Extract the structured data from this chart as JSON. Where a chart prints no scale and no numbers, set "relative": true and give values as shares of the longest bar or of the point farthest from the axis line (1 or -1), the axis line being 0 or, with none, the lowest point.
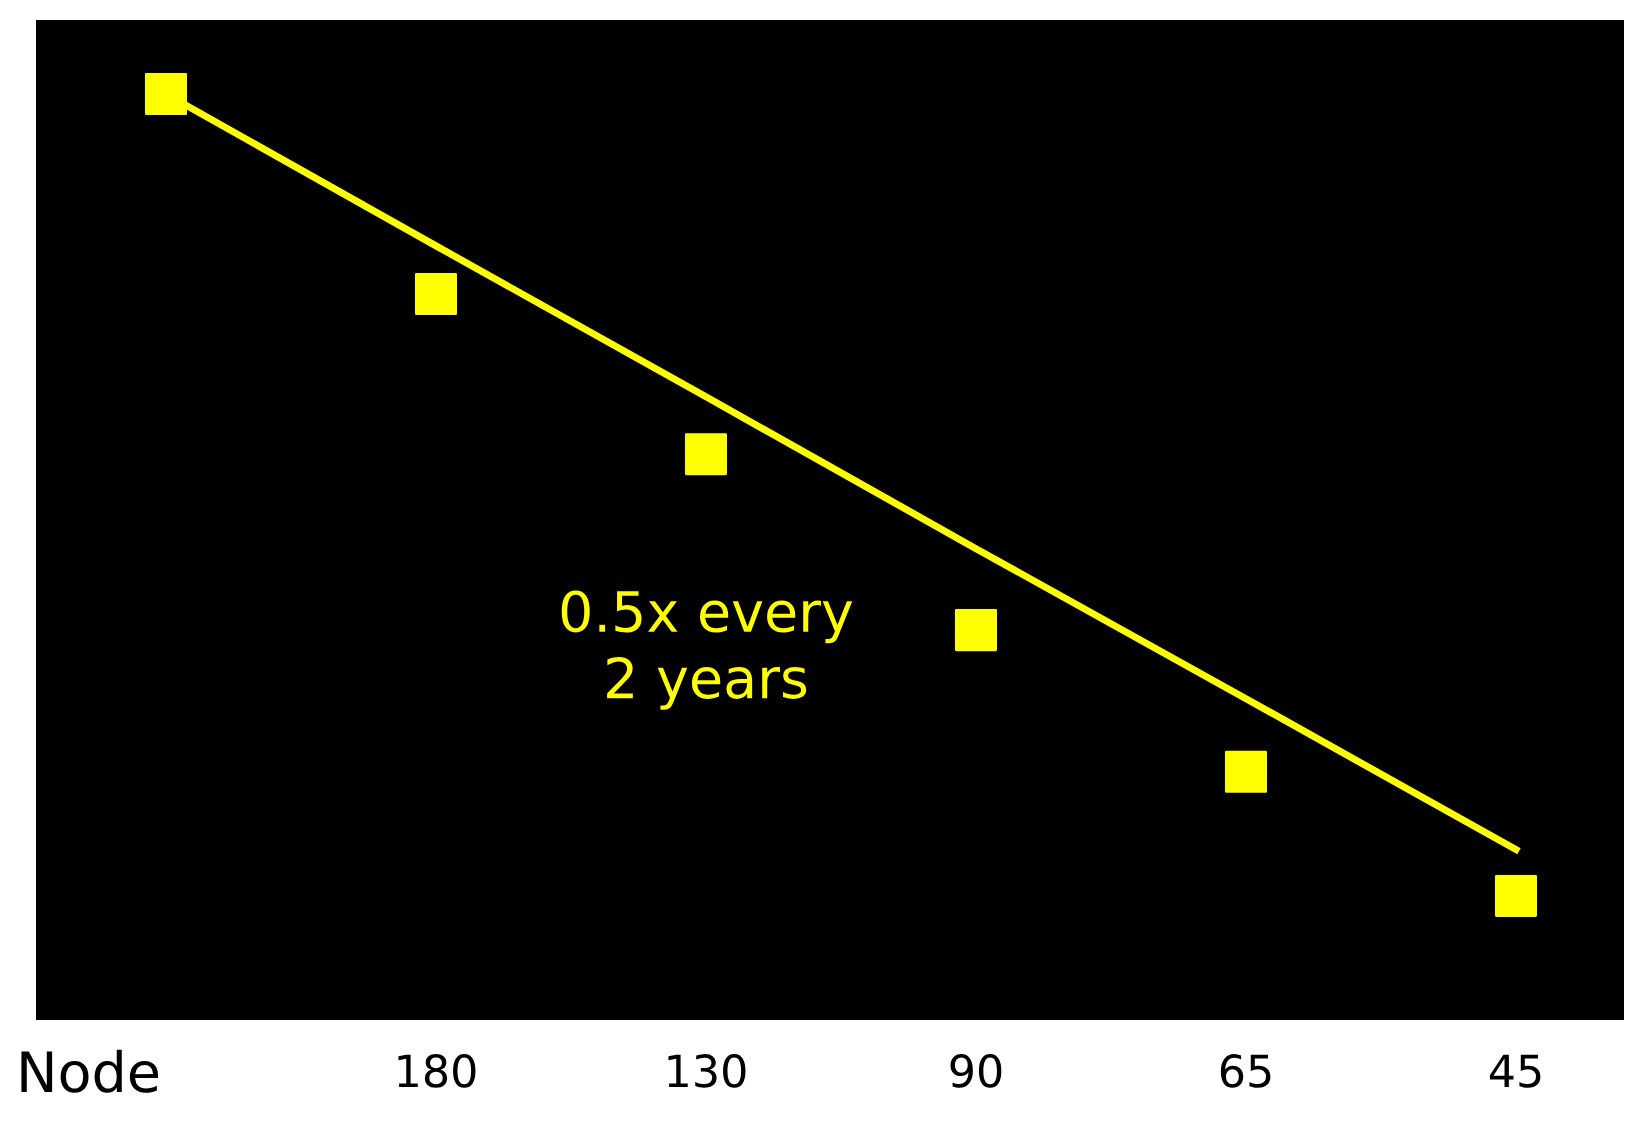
{
  "chart_data": {
    "type": "scatter",
    "relative": true,
    "xlabel": "Node",
    "categories": [
      null,
      "180",
      "130",
      "90",
      "65",
      "45"
    ],
    "series": [
      {
        "color": "#ffff00",
        "marker": "square",
        "values": [
          1,
          0.784,
          0.611,
          0.421,
          0.268,
          0.134
        ]
      },
      {
        "type": "line",
        "color": "#ffff00",
        "marker": "none",
        "line_style": "solid",
        "values": [
          1,
          0.836,
          0.673,
          0.509,
          0.347,
          0.184
        ]
      }
    ],
    "annotations": [
      "0.5x every\n2 years"
    ],
    "grid": false
  }
}
